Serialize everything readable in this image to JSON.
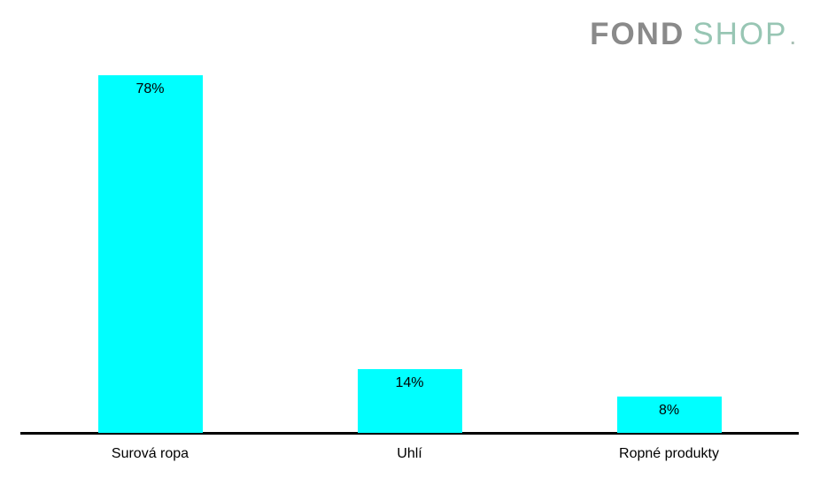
{
  "logo": {
    "part1": "FOND",
    "part2": "SHOP",
    "dot": ".",
    "part1_color": "#8a8a8a",
    "part2_color": "#98c6b4",
    "dot_color": "#a9c0b5"
  },
  "chart_data": {
    "type": "bar",
    "categories": [
      "Surová ropa",
      "Uhlí",
      "Ropné produkty"
    ],
    "values": [
      78,
      14,
      8
    ],
    "value_labels": [
      "78%",
      "14%",
      "8%"
    ],
    "title": "",
    "xlabel": "",
    "ylabel": "",
    "ylim": [
      0,
      80
    ],
    "grid": false,
    "legend": false,
    "value_label_position": "inside-end",
    "bar_color": "#00ffff",
    "axis_color": "#000000",
    "text_color": "#000000",
    "background_color": "#ffffff"
  }
}
